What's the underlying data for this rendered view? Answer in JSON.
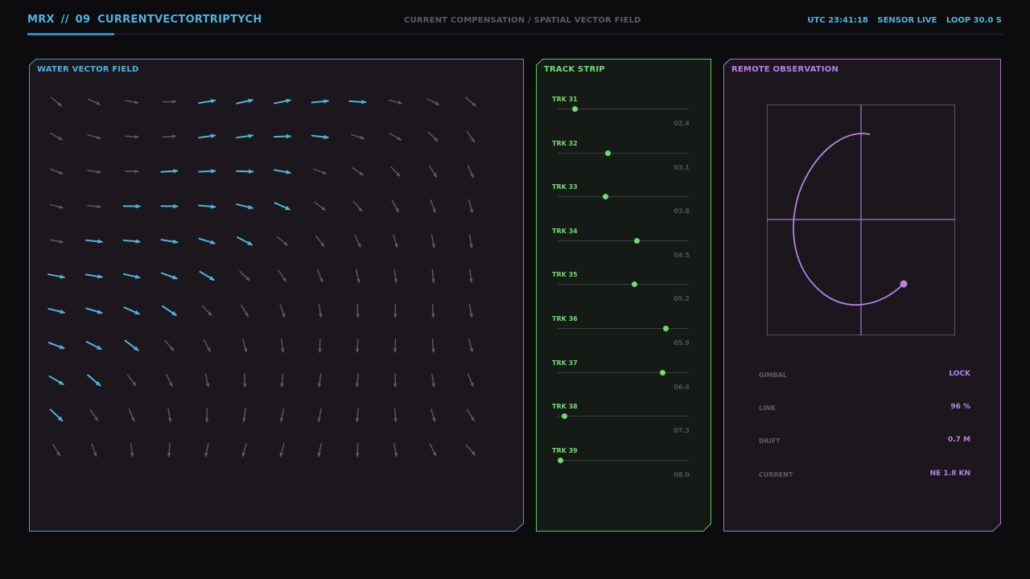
{
  "header": {
    "app": "MRX",
    "separator": "//",
    "index": "09",
    "name": "CURRENTVECTORTRIPTYCH",
    "subtitle": "CURRENT COMPENSATION / SPATIAL VECTOR FIELD",
    "clock": "UTC 23:41:18",
    "sensor": "SENSOR LIVE",
    "loop": "LOOP 30.0 S"
  },
  "colors": {
    "vector": "#4cb4e0",
    "track": "#6fdc6f",
    "remote": "#b980ec",
    "muted": "#5f5a63"
  },
  "vector_panel": {
    "title": "WATER VECTOR FIELD",
    "grid": {
      "columns": 12,
      "rows": 11,
      "active_cells": [
        [
          0,
          4
        ],
        [
          0,
          5
        ],
        [
          0,
          6
        ],
        [
          0,
          7
        ],
        [
          0,
          8
        ],
        [
          1,
          4
        ],
        [
          1,
          5
        ],
        [
          1,
          6
        ],
        [
          1,
          7
        ],
        [
          2,
          3
        ],
        [
          2,
          4
        ],
        [
          2,
          5
        ],
        [
          2,
          6
        ],
        [
          3,
          2
        ],
        [
          3,
          3
        ],
        [
          3,
          4
        ],
        [
          3,
          5
        ],
        [
          3,
          6
        ],
        [
          4,
          1
        ],
        [
          4,
          2
        ],
        [
          4,
          3
        ],
        [
          4,
          4
        ],
        [
          4,
          5
        ],
        [
          5,
          0
        ],
        [
          5,
          1
        ],
        [
          5,
          2
        ],
        [
          5,
          3
        ],
        [
          5,
          4
        ],
        [
          6,
          0
        ],
        [
          6,
          1
        ],
        [
          6,
          2
        ],
        [
          6,
          3
        ],
        [
          7,
          0
        ],
        [
          7,
          1
        ],
        [
          7,
          2
        ],
        [
          8,
          0
        ],
        [
          8,
          1
        ],
        [
          9,
          0
        ]
      ]
    }
  },
  "track_panel": {
    "title": "TRACK STRIP",
    "tracks": [
      {
        "label": "TRK 31",
        "value": "02.4",
        "position": 0.13
      },
      {
        "label": "TRK 32",
        "value": "03.1",
        "position": 0.38
      },
      {
        "label": "TRK 33",
        "value": "03.8",
        "position": 0.36
      },
      {
        "label": "TRK 34",
        "value": "04.5",
        "position": 0.6
      },
      {
        "label": "TRK 35",
        "value": "05.2",
        "position": 0.58
      },
      {
        "label": "TRK 36",
        "value": "05.9",
        "position": 0.82
      },
      {
        "label": "TRK 37",
        "value": "06.6",
        "position": 0.8
      },
      {
        "label": "TRK 38",
        "value": "07.3",
        "position": 0.05
      },
      {
        "label": "TRK 39",
        "value": "08.0",
        "position": 0.02
      }
    ]
  },
  "remote_panel": {
    "title": "REMOTE OBSERVATION",
    "readouts": [
      {
        "key": "GIMBAL",
        "value": "LOCK"
      },
      {
        "key": "LINK",
        "value": "96 %"
      },
      {
        "key": "DRIFT",
        "value": "0.7 M"
      },
      {
        "key": "CURRENT",
        "value": "NE 1.8 KN"
      }
    ]
  }
}
